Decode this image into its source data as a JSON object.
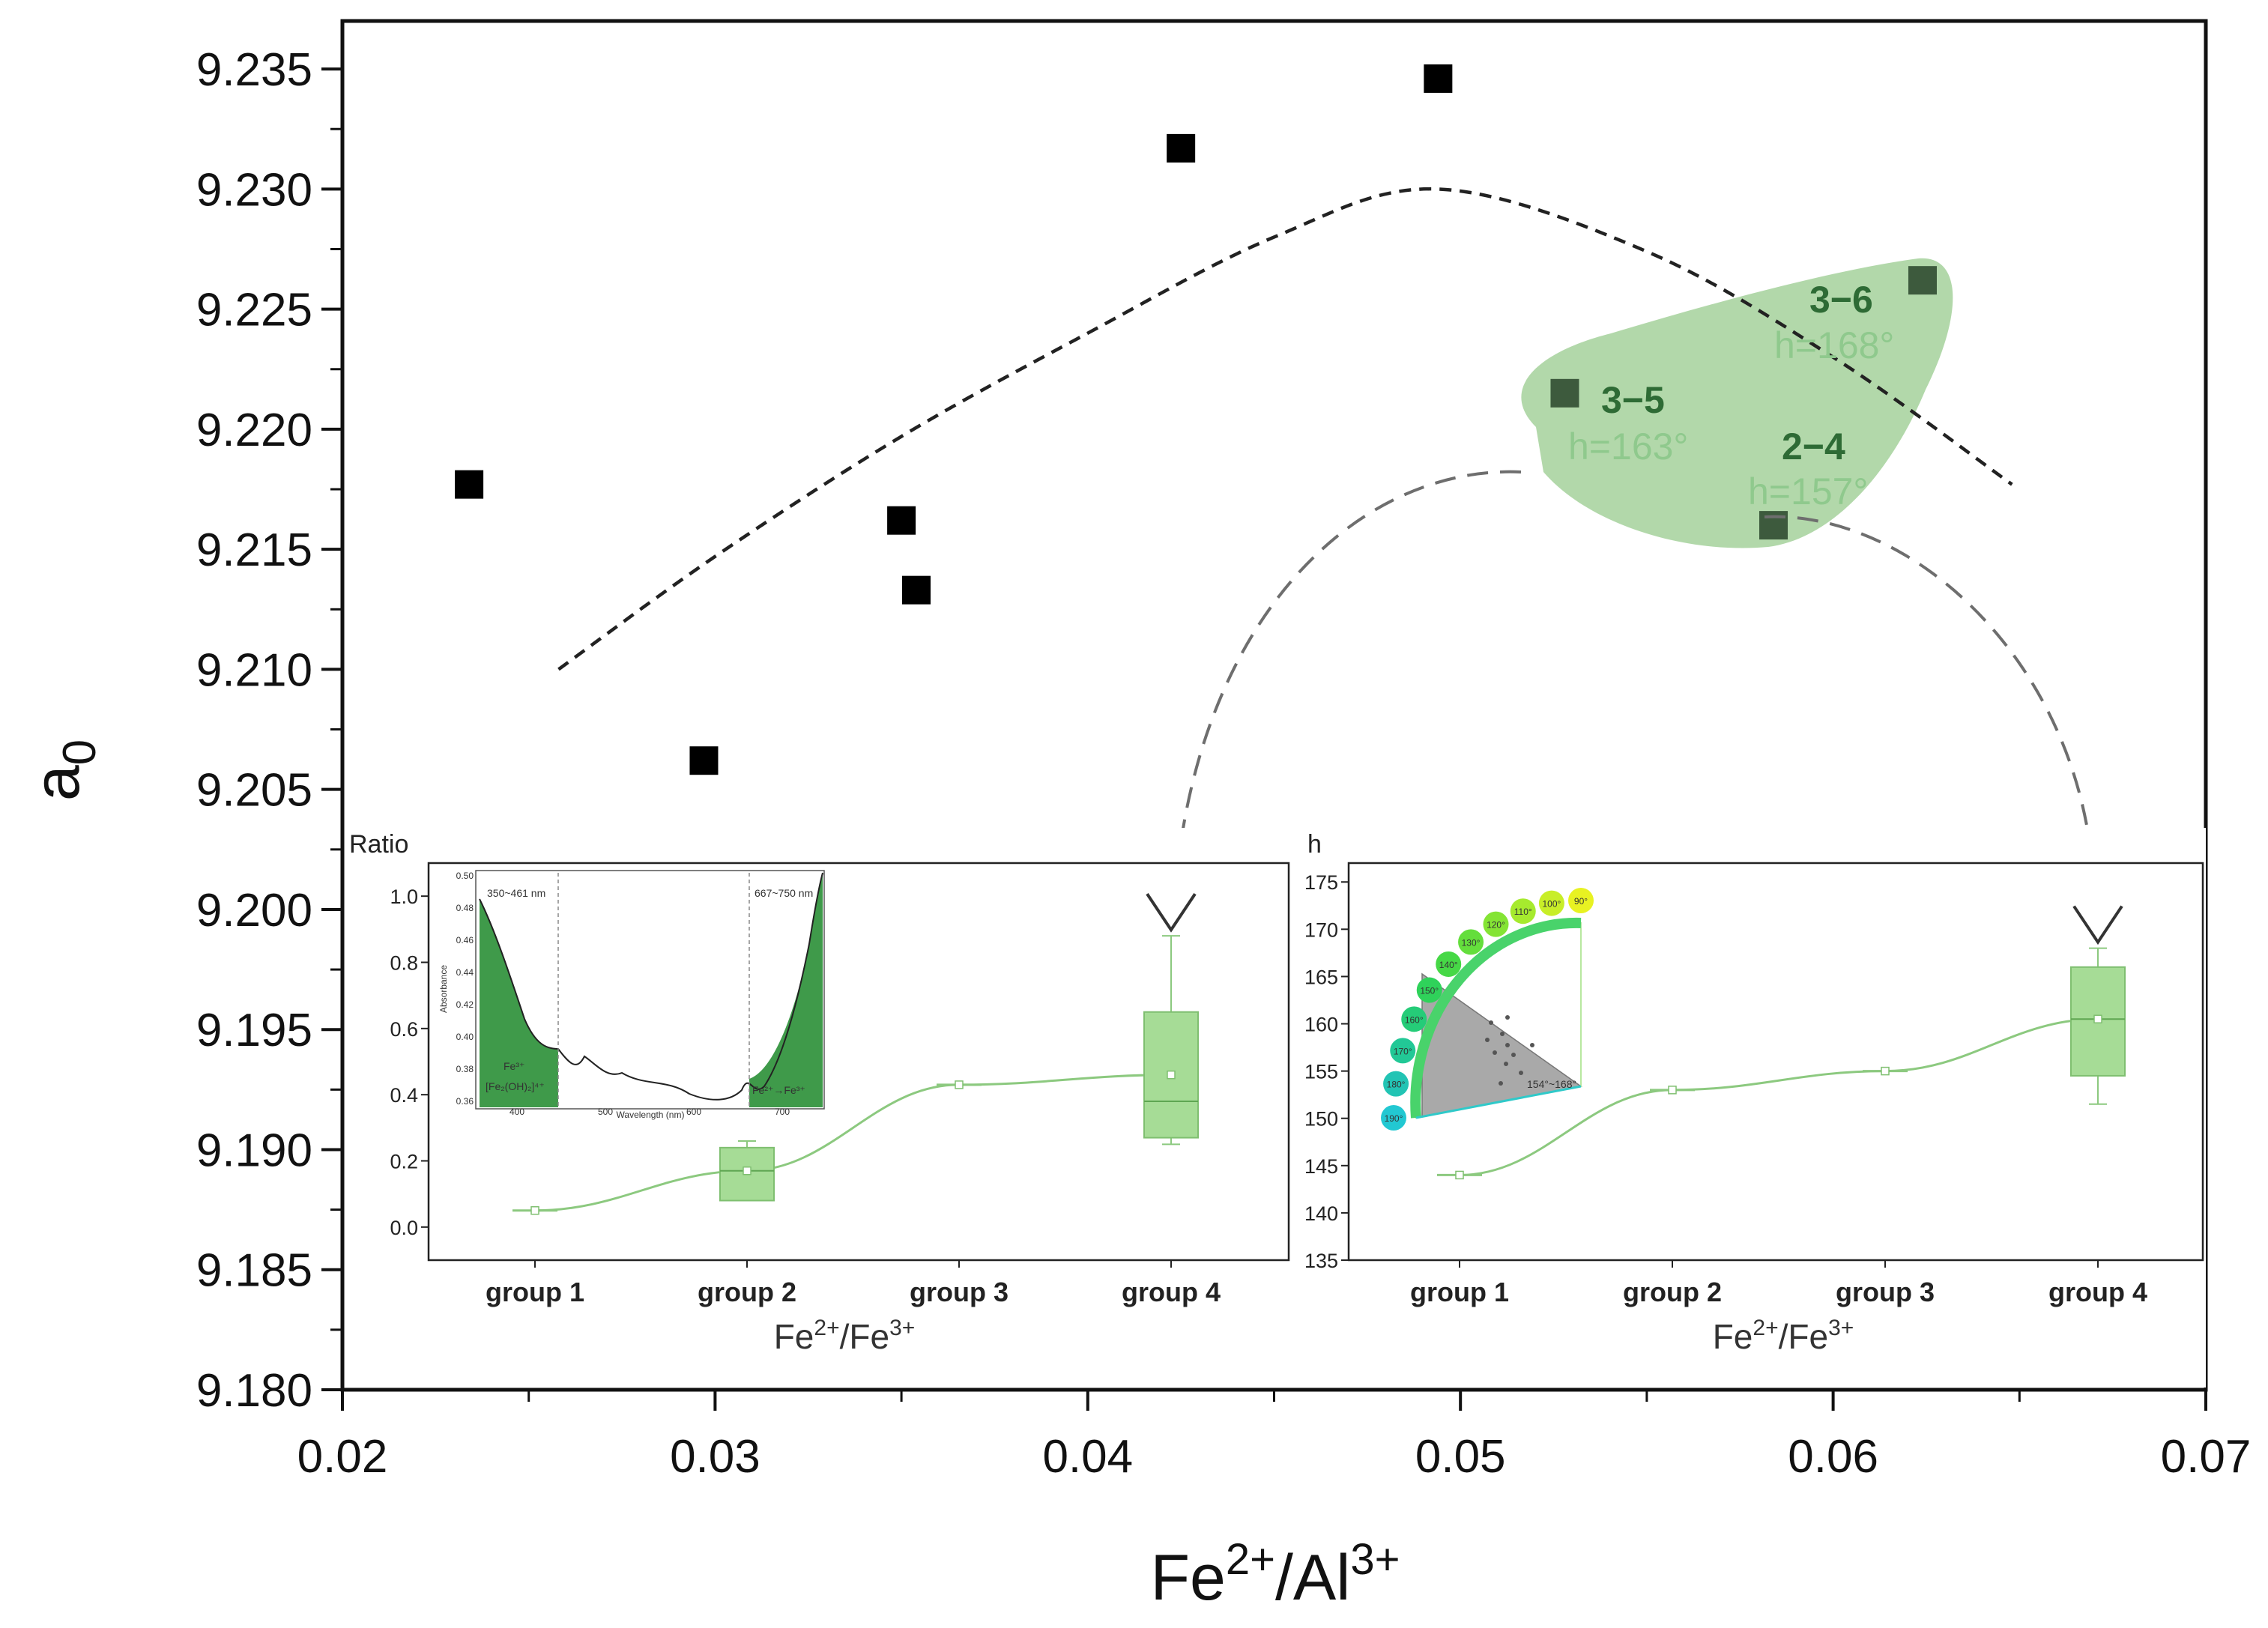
{
  "chart_data": [
    {
      "type": "scatter",
      "title": "",
      "xlabel": "Fe2+/Al3+",
      "xlabel_parts": {
        "a": "Fe",
        "a_sup": "2+",
        "sep": "/Al",
        "b_sup": "3+"
      },
      "ylabel": "a0",
      "ylabel_parts": {
        "main": "a",
        "sub": "0"
      },
      "xlim": [
        0.02,
        0.07
      ],
      "ylim": [
        9.18,
        9.237
      ],
      "xticks": [
        "0.02",
        "0.03",
        "0.04",
        "0.05",
        "0.06",
        "0.07"
      ],
      "yticks": [
        "9.180",
        "9.185",
        "9.190",
        "9.195",
        "9.200",
        "9.205",
        "9.210",
        "9.215",
        "9.220",
        "9.225",
        "9.230",
        "9.235"
      ],
      "grid": false,
      "points": [
        {
          "x": 0.0234,
          "y": 9.2177
        },
        {
          "x": 0.0297,
          "y": 9.2062
        },
        {
          "x": 0.035,
          "y": 9.2162
        },
        {
          "x": 0.0354,
          "y": 9.2133
        },
        {
          "x": 0.0425,
          "y": 9.2317
        },
        {
          "x": 0.0494,
          "y": 9.2346
        },
        {
          "x": 0.0528,
          "y": 9.2215
        },
        {
          "x": 0.0584,
          "y": 9.216
        },
        {
          "x": 0.0624,
          "y": 9.2262
        }
      ],
      "trend_curve": {
        "style": "dashed",
        "x": [
          0.0258,
          0.03,
          0.035,
          0.04,
          0.045,
          0.0494,
          0.055,
          0.06,
          0.0648
        ],
        "y": [
          9.21,
          9.2147,
          9.2197,
          9.224,
          9.228,
          9.23,
          9.2274,
          9.223,
          9.2177
        ]
      },
      "highlight_region": {
        "color": "#a5d19b"
      },
      "annotations": [
        {
          "id": "3-6",
          "text": "3−6",
          "angle": "h=168°"
        },
        {
          "id": "3-5",
          "text": "3−5",
          "angle": "h=163°"
        },
        {
          "id": "2-4",
          "text": "2−4",
          "angle": "h=157°"
        }
      ]
    },
    {
      "type": "box",
      "title": "",
      "ylabel": "Ratio",
      "xlabel": "Fe2+/Fe3+",
      "xlabel_parts": {
        "a": "Fe",
        "a_sup": "2+",
        "sep": "/Fe",
        "b_sup": "3+"
      },
      "categories": [
        "group 1",
        "group 2",
        "group 3",
        "group 4"
      ],
      "ylim": [
        -0.1,
        1.1
      ],
      "yticks": [
        "0.0",
        "0.2",
        "0.4",
        "0.6",
        "0.8",
        "1.0"
      ],
      "means": [
        0.05,
        0.17,
        0.43,
        0.46
      ],
      "boxes": [
        {
          "q1": 0.05,
          "median": 0.05,
          "q3": 0.05,
          "min": 0.05,
          "max": 0.05
        },
        {
          "q1": 0.08,
          "median": 0.17,
          "q3": 0.24,
          "min": 0.08,
          "max": 0.26
        },
        {
          "q1": 0.43,
          "median": 0.43,
          "q3": 0.43,
          "min": 0.43,
          "max": 0.43
        },
        {
          "q1": 0.27,
          "median": 0.38,
          "q3": 0.65,
          "min": 0.25,
          "max": 0.88
        }
      ],
      "spectrum_inset": {
        "xlabel": "Wavelength (nm)",
        "ylabel": "Absorbance",
        "xticks": [
          "400",
          "500",
          "600",
          "700"
        ],
        "yticks": [
          "0.36",
          "0.38",
          "0.40",
          "0.42",
          "0.44",
          "0.46",
          "0.48",
          "0.50"
        ],
        "band1": "350~461 nm",
        "band2": "667~750 nm",
        "label1_top": "Fe³⁺",
        "label1_bottom": "[Fe₂(OH)₂]⁴⁺",
        "label2": "Fe²⁺→Fe³⁺"
      }
    },
    {
      "type": "box",
      "title": "",
      "ylabel": "h",
      "xlabel": "Fe2+/Fe3+",
      "xlabel_parts": {
        "a": "Fe",
        "a_sup": "2+",
        "sep": "/Fe",
        "b_sup": "3+"
      },
      "categories": [
        "group 1",
        "group 2",
        "group 3",
        "group 4"
      ],
      "ylim": [
        135,
        177
      ],
      "yticks": [
        "135",
        "140",
        "145",
        "150",
        "155",
        "160",
        "165",
        "170",
        "175"
      ],
      "means": [
        144,
        153,
        155,
        160.5
      ],
      "boxes": [
        {
          "q1": 144,
          "median": 144,
          "q3": 144,
          "min": 144,
          "max": 144
        },
        {
          "q1": 153,
          "median": 153,
          "q3": 153,
          "min": 153,
          "max": 153
        },
        {
          "q1": 155,
          "median": 155,
          "q3": 155,
          "min": 155,
          "max": 155
        },
        {
          "q1": 154.5,
          "median": 160.5,
          "q3": 166,
          "min": 151.5,
          "max": 168
        }
      ],
      "hue_wheel": {
        "labels": [
          "90°",
          "100°",
          "110°",
          "120°",
          "130°",
          "140°",
          "150°",
          "160°",
          "170°",
          "180°",
          "190°"
        ],
        "colors": [
          "#e8f222",
          "#c8ee28",
          "#a6ea2e",
          "#84e434",
          "#64de3c",
          "#46d846",
          "#2fd25a",
          "#25cc78",
          "#22c896",
          "#22c4b4",
          "#22c8d2"
        ],
        "range_label": "154°~168°"
      }
    }
  ]
}
